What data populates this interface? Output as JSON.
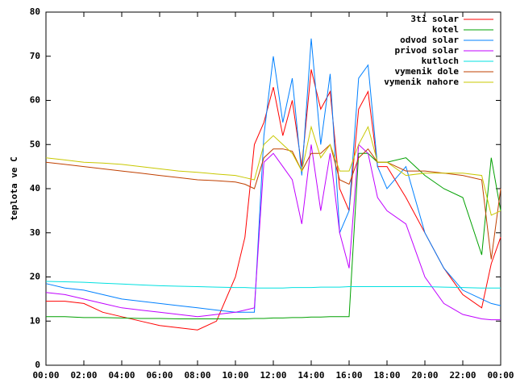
{
  "chart_data": {
    "type": "line",
    "ylabel": "teplota ve C",
    "x": [
      0,
      1,
      2,
      3,
      4,
      5,
      6,
      7,
      8,
      9,
      10,
      10.5,
      11,
      11.5,
      12,
      12.5,
      13,
      13.5,
      14,
      14.5,
      15,
      15.5,
      16,
      16.5,
      17,
      17.5,
      18,
      19,
      20,
      21,
      22,
      23,
      23.5,
      24
    ],
    "xlim": [
      0,
      24
    ],
    "xticks": [
      {
        "value": 0,
        "label": "00:00"
      },
      {
        "value": 2,
        "label": "02:00"
      },
      {
        "value": 4,
        "label": "04:00"
      },
      {
        "value": 6,
        "label": "06:00"
      },
      {
        "value": 8,
        "label": "08:00"
      },
      {
        "value": 10,
        "label": "10:00"
      },
      {
        "value": 12,
        "label": "12:00"
      },
      {
        "value": 14,
        "label": "14:00"
      },
      {
        "value": 16,
        "label": "16:00"
      },
      {
        "value": 18,
        "label": "18:00"
      },
      {
        "value": 20,
        "label": "20:00"
      },
      {
        "value": 22,
        "label": "22:00"
      },
      {
        "value": 24,
        "label": "00:00"
      }
    ],
    "ylim": [
      0,
      80
    ],
    "yticks": [
      0,
      10,
      20,
      30,
      40,
      50,
      60,
      70,
      80
    ],
    "legend": "top-right",
    "series": [
      {
        "name": "3ti solar",
        "color": "#ff0000",
        "values": [
          14.5,
          14.5,
          14,
          12,
          11,
          10,
          9,
          8.5,
          8,
          10,
          20,
          29,
          50,
          55,
          63,
          52,
          60,
          45,
          67,
          58,
          62,
          40,
          35,
          58,
          62,
          45,
          45,
          38,
          30,
          22,
          16,
          13,
          23,
          29
        ]
      },
      {
        "name": "kotel",
        "color": "#00a000",
        "values": [
          11,
          11,
          10.8,
          10.8,
          10.7,
          10.6,
          10.6,
          10.5,
          10.5,
          10.5,
          10.5,
          10.5,
          10.6,
          10.6,
          10.7,
          10.7,
          10.8,
          10.8,
          10.9,
          10.9,
          11,
          11,
          11,
          48,
          48,
          46,
          46,
          47,
          43,
          40,
          38,
          25,
          47,
          35
        ]
      },
      {
        "name": "odvod solar",
        "color": "#0080ff",
        "values": [
          18.5,
          17.5,
          17,
          16,
          15,
          14.5,
          14,
          13.5,
          13,
          12.5,
          12,
          12,
          12,
          52,
          70,
          55,
          65,
          43,
          74,
          50,
          66,
          30,
          35,
          65,
          68,
          45,
          40,
          45,
          30,
          22,
          17,
          15,
          14,
          13.5
        ]
      },
      {
        "name": "privod solar",
        "color": "#c000ff",
        "values": [
          16.5,
          16,
          15,
          14,
          13,
          12.5,
          12,
          11.5,
          11,
          11.5,
          12,
          12.5,
          13,
          46,
          48,
          45,
          42,
          32,
          50,
          35,
          48,
          30,
          22,
          50,
          48,
          38,
          35,
          32,
          20,
          14,
          11.5,
          10.5,
          10.3,
          10.3
        ]
      },
      {
        "name": "kutloch",
        "color": "#00e0e0",
        "values": [
          19,
          18.9,
          18.8,
          18.6,
          18.4,
          18.2,
          18,
          17.9,
          17.8,
          17.7,
          17.6,
          17.6,
          17.5,
          17.5,
          17.5,
          17.5,
          17.6,
          17.6,
          17.6,
          17.7,
          17.7,
          17.7,
          17.8,
          17.8,
          17.8,
          17.8,
          17.8,
          17.8,
          17.8,
          17.7,
          17.6,
          17.5,
          17.5,
          17.5
        ]
      },
      {
        "name": "vymenik dole",
        "color": "#c04000",
        "values": [
          46,
          45.5,
          45,
          44.5,
          44,
          43.5,
          43,
          42.5,
          42,
          41.8,
          41.5,
          41,
          40,
          47,
          49,
          49,
          48.5,
          44,
          48,
          48,
          50,
          42,
          41,
          47,
          49,
          46,
          46,
          44,
          44,
          43.5,
          43,
          42,
          24,
          40
        ]
      },
      {
        "name": "vymenik nahore",
        "color": "#c8c800",
        "values": [
          47,
          46.5,
          46,
          45.8,
          45.5,
          45,
          44.5,
          44,
          43.7,
          43.3,
          43,
          42.5,
          42,
          50,
          52,
          50,
          48,
          44,
          54,
          47,
          50,
          44,
          44,
          50,
          54,
          46,
          46,
          43,
          43.5,
          43.5,
          43.5,
          43,
          34,
          35
        ]
      }
    ]
  }
}
